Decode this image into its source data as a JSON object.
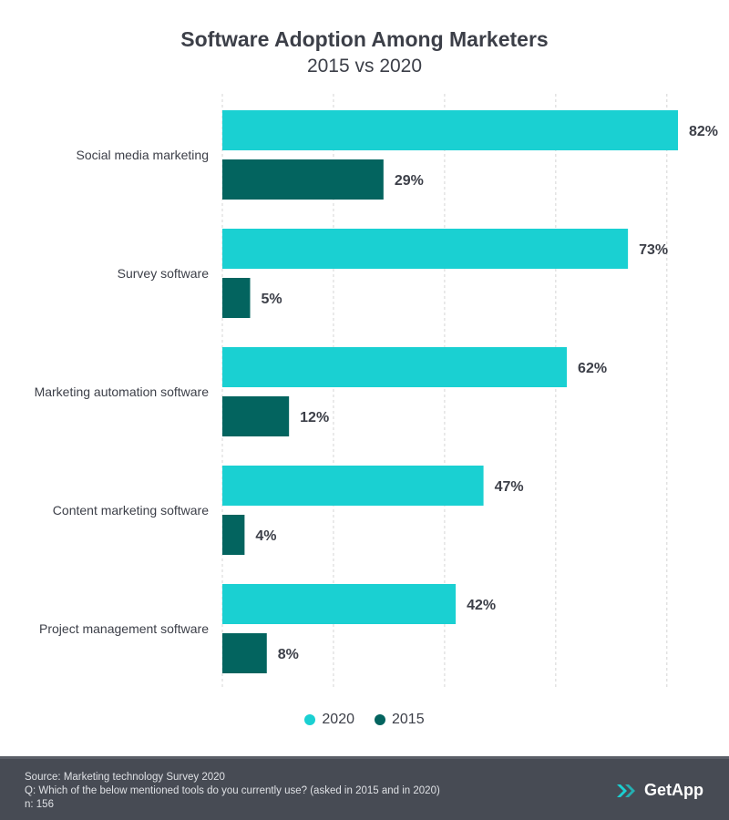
{
  "chart_data": {
    "type": "bar",
    "orientation": "horizontal",
    "title": "Software Adoption Among Marketers",
    "subtitle": "2015 vs 2020",
    "categories": [
      "Social media marketing",
      "Survey software",
      "Marketing automation software",
      "Content marketing software",
      "Project management software"
    ],
    "series": [
      {
        "name": "2020",
        "color": "#1ad0d2",
        "values": [
          82,
          73,
          62,
          47,
          42
        ],
        "labels": [
          "82%",
          "73%",
          "62%",
          "47%",
          "42%"
        ]
      },
      {
        "name": "2015",
        "color": "#03645f",
        "values": [
          29,
          5,
          12,
          4,
          8
        ],
        "labels": [
          "29%",
          "5%",
          "12%",
          "4%",
          "8%"
        ]
      }
    ],
    "xlim": [
      0,
      82
    ],
    "grid": true,
    "legend_position": "bottom-center"
  },
  "footer": {
    "source": "Source: Marketing technology Survey 2020",
    "question": "Q: Which of the below mentioned tools do you currently use? (asked in 2015 and in 2020)",
    "n": "n: 156",
    "brand": "GetApp"
  },
  "colors": {
    "footer_bg": "#474b54",
    "gridline": "#d4d4d4",
    "text": "#3c3f48"
  },
  "icons": {
    "logo": "getapp-chevrons-icon"
  }
}
